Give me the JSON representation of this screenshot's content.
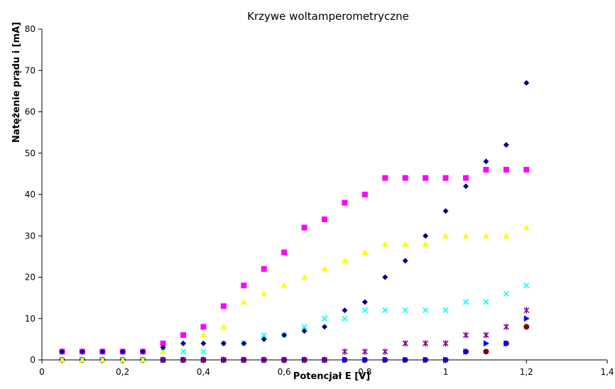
{
  "chart_data": {
    "type": "scatter",
    "title": "Krzywe woltamperometryczne",
    "xlabel": "Potencjał E [V]",
    "ylabel": "Natężenie prądu i [mA]",
    "xlim": [
      0,
      1.4
    ],
    "ylim": [
      0,
      80
    ],
    "xticks": [
      0,
      0.2,
      0.4,
      0.6,
      0.8,
      1,
      1.2,
      1.4
    ],
    "xtick_labels": [
      "0",
      "0,2",
      "0,4",
      "0,6",
      "0,8",
      "1",
      "1,2",
      "1,4"
    ],
    "yticks": [
      0,
      10,
      20,
      30,
      40,
      50,
      60,
      70,
      80
    ],
    "ytick_labels": [
      "0",
      "10",
      "20",
      "30",
      "40",
      "50",
      "60",
      "70",
      "80"
    ],
    "grid": false,
    "legend": false,
    "x": [
      0.05,
      0.1,
      0.15,
      0.2,
      0.25,
      0.3,
      0.35,
      0.4,
      0.45,
      0.5,
      0.55,
      0.6,
      0.65,
      0.7,
      0.75,
      0.8,
      0.85,
      0.9,
      0.95,
      1.0,
      1.05,
      1.1,
      1.15,
      1.2
    ],
    "series": [
      {
        "marker": "diamond",
        "color": "#000080",
        "values": [
          2,
          2,
          2,
          2,
          2,
          3,
          4,
          4,
          4,
          4,
          5,
          6,
          7,
          8,
          12,
          14,
          20,
          24,
          30,
          36,
          42,
          48,
          52,
          67
        ]
      },
      {
        "marker": "square",
        "color": "#ff00ff",
        "values": [
          2,
          2,
          2,
          2,
          2,
          4,
          6,
          8,
          13,
          18,
          22,
          26,
          32,
          34,
          38,
          40,
          44,
          44,
          44,
          44,
          44,
          46,
          46,
          46
        ]
      },
      {
        "marker": "triangle",
        "color": "#ffff00",
        "values": [
          0,
          0,
          0,
          0,
          0,
          2,
          4,
          6,
          8,
          14,
          16,
          18,
          20,
          22,
          24,
          26,
          28,
          28,
          28,
          30,
          30,
          30,
          30,
          32
        ]
      },
      {
        "marker": "x",
        "color": "#00ffff",
        "values": [
          0,
          0,
          0,
          0,
          0,
          2,
          2,
          2,
          4,
          4,
          6,
          6,
          8,
          10,
          10,
          12,
          12,
          12,
          12,
          12,
          14,
          14,
          16,
          18
        ]
      },
      {
        "marker": "star",
        "color": "#800080",
        "values": [
          0,
          0,
          0,
          0,
          0,
          0,
          0,
          0,
          0,
          0,
          0,
          0,
          0,
          0,
          2,
          2,
          2,
          4,
          4,
          4,
          6,
          6,
          8,
          12
        ]
      },
      {
        "marker": "tri-right",
        "color": "#0000ff",
        "values": [
          0,
          0,
          0,
          0,
          0,
          0,
          0,
          0,
          0,
          0,
          0,
          0,
          0,
          0,
          0,
          0,
          0,
          0,
          0,
          0,
          2,
          4,
          4,
          10
        ]
      },
      {
        "marker": "circle",
        "color": "#800000",
        "values": [
          0,
          0,
          0,
          0,
          0,
          0,
          0,
          0,
          0,
          0,
          0,
          0,
          0,
          0,
          0,
          0,
          0,
          0,
          0,
          0,
          2,
          2,
          4,
          8
        ]
      }
    ]
  }
}
